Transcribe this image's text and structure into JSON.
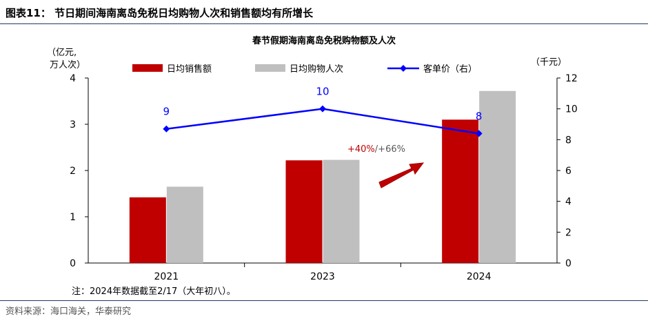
{
  "figure_title": "图表11：  节日期间海南离岛免税日均购物人次和销售额均有所增长",
  "note": "注：2024年数据截至2/17（大年初八）。",
  "source": "资料来源：海口海关，华泰研究",
  "colors": {
    "sales": "#c00000",
    "visits": "#bfbfbf",
    "price": "#0000ff",
    "arrow": "#c00000",
    "rule": "#1f3864"
  },
  "chart_data": {
    "type": "bar",
    "title": "春节假期海南离岛免税购物额及人次",
    "categories": [
      "2021",
      "2023",
      "2024"
    ],
    "y_left_label_line1": "（亿元,",
    "y_left_label_line2": "万人次）",
    "y_right_label": "（千元）",
    "ylim_left": [
      0,
      4
    ],
    "yticks_left": [
      "0",
      "1",
      "2",
      "3",
      "4"
    ],
    "ylim_right": [
      0,
      12
    ],
    "yticks_right": [
      "0",
      "2",
      "4",
      "6",
      "8",
      "10",
      "12"
    ],
    "series": [
      {
        "name": "日均销售额",
        "type": "bar",
        "axis": "left",
        "values": [
          1.42,
          2.22,
          3.1
        ]
      },
      {
        "name": "日均购物人次",
        "type": "bar",
        "axis": "left",
        "values": [
          1.65,
          2.23,
          3.72
        ]
      },
      {
        "name": "客单价（右）",
        "type": "line",
        "axis": "right",
        "values": [
          8.7,
          10.0,
          8.4
        ],
        "labels": [
          "9",
          "10",
          "8"
        ]
      }
    ],
    "annotation": {
      "part1": "+40%",
      "part2": "/+66%"
    },
    "legend_position": "top"
  }
}
